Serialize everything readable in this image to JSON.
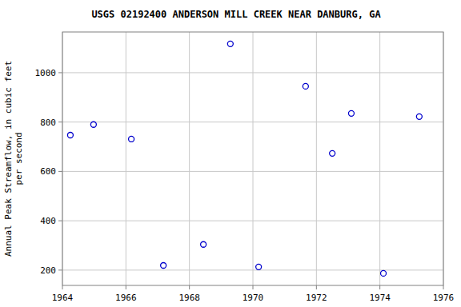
{
  "chart_data": {
    "type": "scatter",
    "title": "USGS 02192400 ANDERSON MILL CREEK NEAR DANBURG, GA",
    "ylabel": "Annual Peak Streamflow, in cubic feet per second",
    "x": [
      1964.25,
      1964.98,
      1966.17,
      1967.18,
      1968.44,
      1969.29,
      1970.18,
      1971.66,
      1972.5,
      1973.1,
      1974.11,
      1975.24
    ],
    "values": [
      747,
      790,
      731,
      219,
      304,
      1117,
      213,
      945,
      673,
      835,
      187,
      822
    ],
    "color": "#0000cc",
    "marker": "circle",
    "xlim": [
      1964,
      1976
    ],
    "xticks": [
      1964,
      1966,
      1968,
      1970,
      1972,
      1974,
      1976
    ],
    "ylim": [
      138,
      1165
    ],
    "yticks": [
      200,
      400,
      600,
      800,
      1000
    ],
    "grid": true
  }
}
